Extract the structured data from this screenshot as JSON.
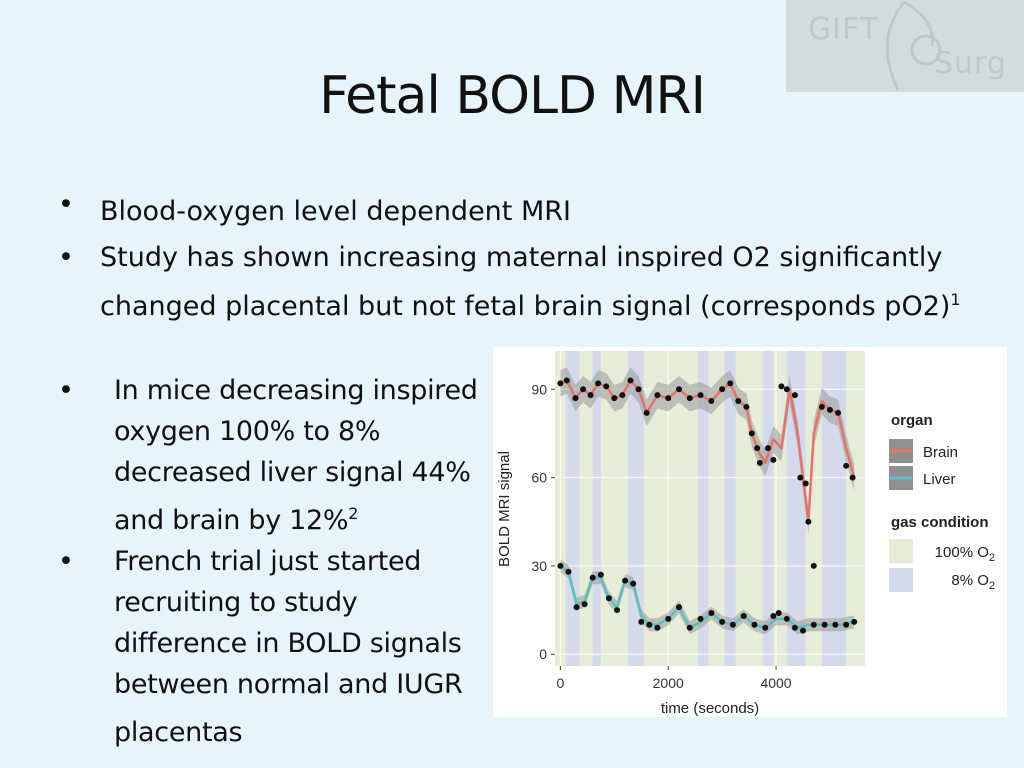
{
  "slide": {
    "title": "Fetal BOLD MRI",
    "bullet_glyph": "•",
    "bullets_top": [
      {
        "text": "Blood-oxygen level dependent MRI",
        "sup": ""
      },
      {
        "text": "Study has shown increasing maternal inspired O2 significantly changed placental but not fetal brain signal (corresponds pO2)",
        "sup": "1"
      }
    ],
    "bullets_left": [
      {
        "text": "In mice decreasing inspired oxygen 100% to 8% decreased liver signal 44% and brain by 12%",
        "sup": "2"
      },
      {
        "text": "French trial just started recruiting to study difference in BOLD signals between normal and IUGR placentas",
        "sup": ""
      }
    ]
  },
  "logo": {
    "line1": "GIFT",
    "line2": "Surg",
    "icon": "gift-surg-logo-arc"
  },
  "colors": {
    "background": "#e8f4fb",
    "brain": "#e0766b",
    "liver": "#5fbfc0",
    "ribbon": "#9a9a9a",
    "band_100": "#e7ecd9",
    "band_8": "#d5d9ec",
    "point": "#111111"
  },
  "chart_data": {
    "type": "line",
    "xlabel": "time (seconds)",
    "ylabel": "BOLD MRI signal",
    "xlim": [
      -100,
      5650
    ],
    "ylim": [
      -4,
      103
    ],
    "xticks": [
      0,
      2000,
      4000
    ],
    "yticks": [
      0,
      30,
      60,
      90
    ],
    "legend": {
      "placement": "right",
      "organ_title": "organ",
      "organ_items": [
        {
          "label": "Brain",
          "color": "#e0766b"
        },
        {
          "label": "Liver",
          "color": "#5fbfc0"
        }
      ],
      "gas_title": "gas condition",
      "gas_items": [
        {
          "label": "100% O",
          "sub": "2",
          "color": "#e7ecd9"
        },
        {
          "label": "8% O",
          "sub": "2",
          "color": "#d5d9ec"
        }
      ]
    },
    "bands_8pct": [
      [
        100,
        350
      ],
      [
        600,
        750
      ],
      [
        1250,
        1550
      ],
      [
        2550,
        2750
      ],
      [
        3050,
        3250
      ],
      [
        3750,
        3950
      ],
      [
        4200,
        4550
      ],
      [
        4850,
        5300
      ]
    ],
    "series": [
      {
        "name": "Brain",
        "x": [
          0,
          120,
          280,
          420,
          560,
          700,
          850,
          1000,
          1150,
          1300,
          1450,
          1600,
          1800,
          2000,
          2200,
          2400,
          2600,
          2800,
          3000,
          3150,
          3300,
          3450,
          3550,
          3700,
          3800,
          3950,
          4100,
          4250,
          4400,
          4500,
          4600,
          4700,
          4850,
          5000,
          5150,
          5300,
          5450
        ],
        "y": [
          92,
          93,
          87,
          90,
          88,
          92,
          91,
          87,
          88,
          93,
          90,
          82,
          88,
          87,
          90,
          87,
          88,
          86,
          90,
          92,
          86,
          84,
          75,
          68,
          65,
          73,
          70,
          90,
          75,
          60,
          45,
          75,
          86,
          83,
          82,
          70,
          60
        ],
        "points": [
          [
            0,
            92
          ],
          [
            120,
            93
          ],
          [
            280,
            87
          ],
          [
            420,
            90
          ],
          [
            560,
            88
          ],
          [
            700,
            92
          ],
          [
            850,
            91
          ],
          [
            1000,
            87
          ],
          [
            1150,
            88
          ],
          [
            1300,
            93
          ],
          [
            1450,
            90
          ],
          [
            1600,
            82
          ],
          [
            1800,
            88
          ],
          [
            2000,
            87
          ],
          [
            2200,
            90
          ],
          [
            2400,
            87
          ],
          [
            2600,
            88
          ],
          [
            2800,
            86
          ],
          [
            3000,
            90
          ],
          [
            3150,
            92
          ],
          [
            3300,
            86
          ],
          [
            3450,
            84
          ],
          [
            3550,
            75
          ],
          [
            3650,
            70
          ],
          [
            3700,
            65
          ],
          [
            3850,
            70
          ],
          [
            3950,
            66
          ],
          [
            4100,
            91
          ],
          [
            4200,
            90
          ],
          [
            4350,
            88
          ],
          [
            4450,
            60
          ],
          [
            4550,
            58
          ],
          [
            4600,
            45
          ],
          [
            4700,
            30
          ],
          [
            4850,
            84
          ],
          [
            5000,
            83
          ],
          [
            5150,
            82
          ],
          [
            5300,
            64
          ],
          [
            5420,
            60
          ]
        ]
      },
      {
        "name": "Liver",
        "x": [
          0,
          150,
          300,
          450,
          600,
          750,
          900,
          1050,
          1200,
          1350,
          1500,
          1650,
          1800,
          2000,
          2200,
          2400,
          2600,
          2800,
          3000,
          3200,
          3400,
          3600,
          3800,
          4000,
          4200,
          4400,
          4600,
          4800,
          5000,
          5200,
          5450
        ],
        "y": [
          30,
          28,
          17,
          18,
          26,
          26,
          19,
          16,
          25,
          24,
          13,
          10,
          10,
          12,
          16,
          9,
          11,
          14,
          11,
          10,
          13,
          10,
          9,
          12,
          12,
          9,
          10,
          10,
          10,
          10,
          11
        ],
        "points": [
          [
            0,
            30
          ],
          [
            150,
            28
          ],
          [
            300,
            16
          ],
          [
            450,
            17
          ],
          [
            600,
            26
          ],
          [
            750,
            27
          ],
          [
            900,
            19
          ],
          [
            1050,
            15
          ],
          [
            1200,
            25
          ],
          [
            1350,
            24
          ],
          [
            1500,
            11
          ],
          [
            1650,
            10
          ],
          [
            1800,
            9
          ],
          [
            2000,
            12
          ],
          [
            2200,
            16
          ],
          [
            2400,
            9
          ],
          [
            2600,
            12
          ],
          [
            2800,
            14
          ],
          [
            3000,
            11
          ],
          [
            3200,
            10
          ],
          [
            3400,
            13
          ],
          [
            3600,
            10
          ],
          [
            3800,
            9
          ],
          [
            3950,
            13
          ],
          [
            4050,
            14
          ],
          [
            4200,
            12
          ],
          [
            4350,
            9
          ],
          [
            4500,
            8
          ],
          [
            4700,
            10
          ],
          [
            4900,
            10
          ],
          [
            5100,
            10
          ],
          [
            5300,
            10
          ],
          [
            5450,
            11
          ]
        ]
      }
    ]
  }
}
